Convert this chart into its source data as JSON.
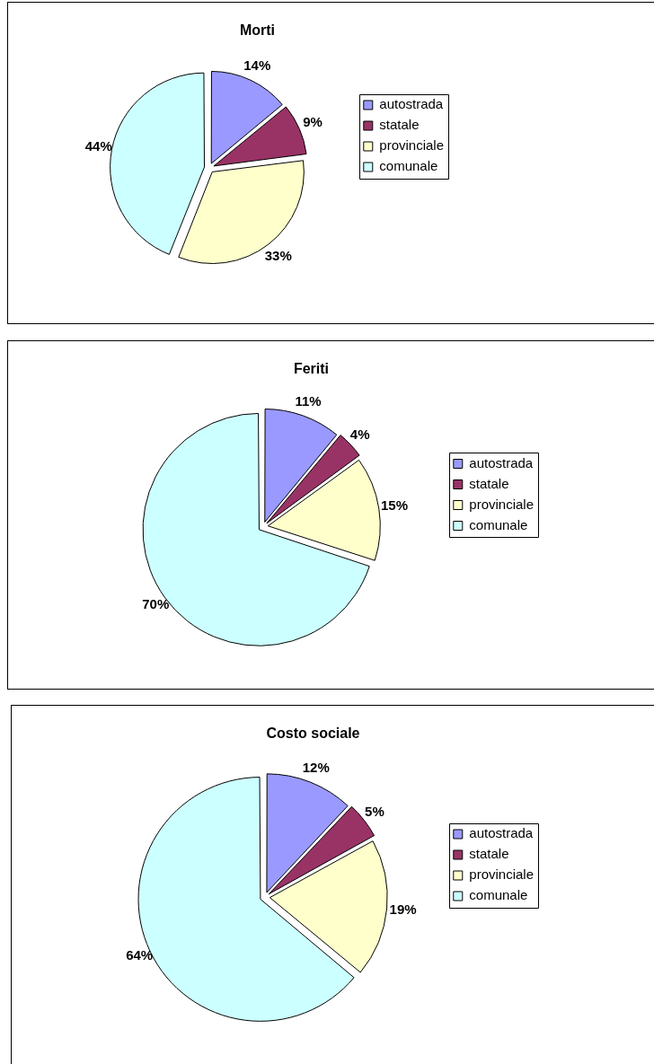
{
  "chart_data": [
    {
      "type": "pie",
      "title": "Morti",
      "categories": [
        "autostrada",
        "statale",
        "provinciale",
        "comunale"
      ],
      "values": [
        14,
        9,
        33,
        44
      ],
      "colors": [
        "#9999ff",
        "#993366",
        "#ffffcc",
        "#ccffff"
      ],
      "legend": "right",
      "value_labels": [
        "14%",
        "9%",
        "33%",
        "44%"
      ]
    },
    {
      "type": "pie",
      "title": "Feriti",
      "categories": [
        "autostrada",
        "statale",
        "provinciale",
        "comunale"
      ],
      "values": [
        11,
        4,
        15,
        70
      ],
      "colors": [
        "#9999ff",
        "#993366",
        "#ffffcc",
        "#ccffff"
      ],
      "legend": "right",
      "value_labels": [
        "11%",
        "4%",
        "15%",
        "70%"
      ]
    },
    {
      "type": "pie",
      "title": "Costo sociale",
      "categories": [
        "autostrada",
        "statale",
        "provinciale",
        "comunale"
      ],
      "values": [
        12,
        5,
        19,
        64
      ],
      "colors": [
        "#9999ff",
        "#993366",
        "#ffffcc",
        "#ccffff"
      ],
      "legend": "right",
      "value_labels": [
        "12%",
        "5%",
        "19%",
        "64%"
      ]
    }
  ]
}
